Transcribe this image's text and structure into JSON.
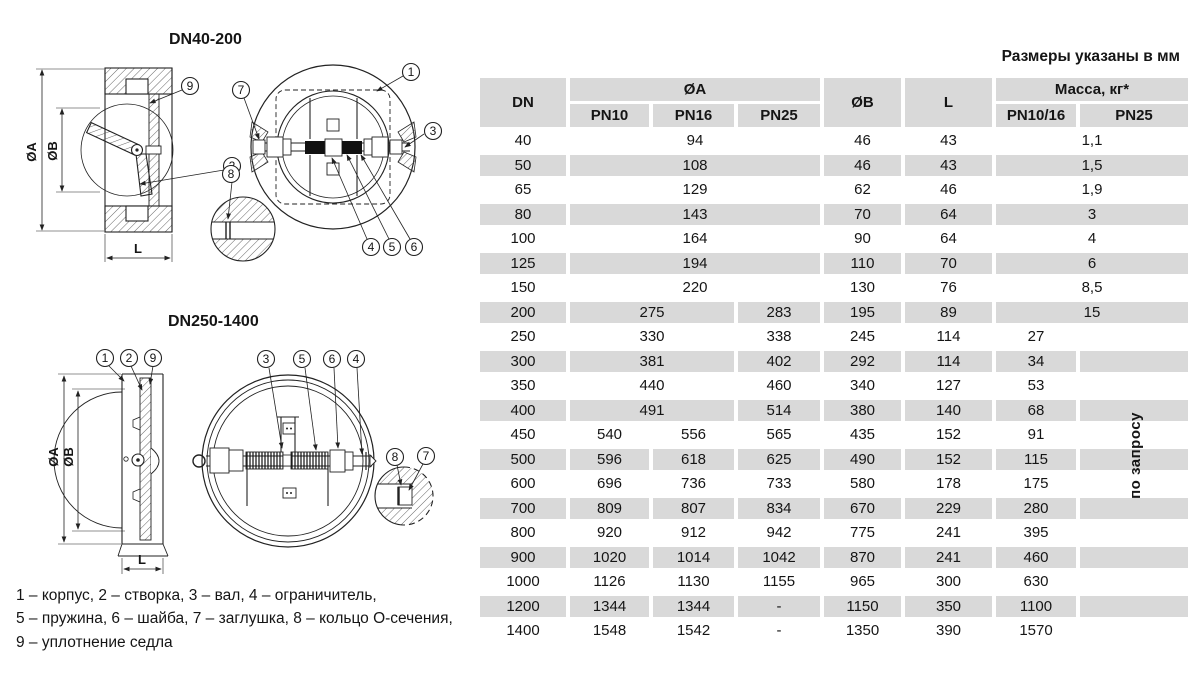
{
  "units_note": "Размеры указаны в мм",
  "drawings": {
    "top": {
      "title": "DN40-200",
      "dims": {
        "a": "ØA",
        "b": "ØB",
        "l": "L"
      },
      "callouts": {
        "c1": "1",
        "c2": "2",
        "c3": "3",
        "c4": "4",
        "c5": "5",
        "c6": "6",
        "c7": "7",
        "c8": "8",
        "c9": "9"
      }
    },
    "bottom": {
      "title": "DN250-1400",
      "dims": {
        "a": "ØA",
        "b": "ØB",
        "l": "L"
      },
      "callouts": {
        "c1": "1",
        "c2": "2",
        "c3": "3",
        "c4": "4",
        "c5": "5",
        "c6": "6",
        "c7": "7",
        "c8": "8",
        "c9": "9"
      }
    }
  },
  "legend": {
    "line1": "1 – корпус, 2 – створка, 3 – вал, 4 – ограничитель,",
    "line2": "5 – пружина, 6 – шайба, 7 – заглушка, 8 – кольцо О-сечения,",
    "line3": "9 – уплотнение седла"
  },
  "table": {
    "header": {
      "dn": "DN",
      "a": "ØA",
      "b": "ØB",
      "l": "L",
      "mass": "Масса, кг*",
      "pn10": "PN10",
      "pn16": "PN16",
      "pn25": "PN25",
      "pn1016": "PN10/16",
      "pn25m": "PN25"
    },
    "on_request": "по запросу",
    "rows": [
      {
        "dn": "40",
        "a": [
          [
            "94",
            3
          ]
        ],
        "b": "46",
        "l": "43",
        "m": [
          [
            "1,1",
            2
          ]
        ]
      },
      {
        "dn": "50",
        "a": [
          [
            "108",
            3
          ]
        ],
        "b": "46",
        "l": "43",
        "m": [
          [
            "1,5",
            2
          ]
        ]
      },
      {
        "dn": "65",
        "a": [
          [
            "129",
            3
          ]
        ],
        "b": "62",
        "l": "46",
        "m": [
          [
            "1,9",
            2
          ]
        ]
      },
      {
        "dn": "80",
        "a": [
          [
            "143",
            3
          ]
        ],
        "b": "70",
        "l": "64",
        "m": [
          [
            "3",
            2
          ]
        ]
      },
      {
        "dn": "100",
        "a": [
          [
            "164",
            3
          ]
        ],
        "b": "90",
        "l": "64",
        "m": [
          [
            "4",
            2
          ]
        ]
      },
      {
        "dn": "125",
        "a": [
          [
            "194",
            3
          ]
        ],
        "b": "110",
        "l": "70",
        "m": [
          [
            "6",
            2
          ]
        ]
      },
      {
        "dn": "150",
        "a": [
          [
            "220",
            3
          ]
        ],
        "b": "130",
        "l": "76",
        "m": [
          [
            "8,5",
            2
          ]
        ]
      },
      {
        "dn": "200",
        "a": [
          [
            "275",
            2
          ],
          [
            "283",
            1
          ]
        ],
        "b": "195",
        "l": "89",
        "m": [
          [
            "15",
            2
          ]
        ]
      },
      {
        "dn": "250",
        "a": [
          [
            "330",
            2
          ],
          [
            "338",
            1
          ]
        ],
        "b": "245",
        "l": "114",
        "m": [
          [
            "27",
            1
          ]
        ]
      },
      {
        "dn": "300",
        "a": [
          [
            "381",
            2
          ],
          [
            "402",
            1
          ]
        ],
        "b": "292",
        "l": "114",
        "m": [
          [
            "34",
            1
          ]
        ]
      },
      {
        "dn": "350",
        "a": [
          [
            "440",
            2
          ],
          [
            "460",
            1
          ]
        ],
        "b": "340",
        "l": "127",
        "m": [
          [
            "53",
            1
          ]
        ]
      },
      {
        "dn": "400",
        "a": [
          [
            "491",
            2
          ],
          [
            "514",
            1
          ]
        ],
        "b": "380",
        "l": "140",
        "m": [
          [
            "68",
            1
          ]
        ]
      },
      {
        "dn": "450",
        "a": [
          [
            "540",
            1
          ],
          [
            "556",
            1
          ],
          [
            "565",
            1
          ]
        ],
        "b": "435",
        "l": "152",
        "m": [
          [
            "91",
            1
          ]
        ]
      },
      {
        "dn": "500",
        "a": [
          [
            "596",
            1
          ],
          [
            "618",
            1
          ],
          [
            "625",
            1
          ]
        ],
        "b": "490",
        "l": "152",
        "m": [
          [
            "115",
            1
          ]
        ]
      },
      {
        "dn": "600",
        "a": [
          [
            "696",
            1
          ],
          [
            "736",
            1
          ],
          [
            "733",
            1
          ]
        ],
        "b": "580",
        "l": "178",
        "m": [
          [
            "175",
            1
          ]
        ]
      },
      {
        "dn": "700",
        "a": [
          [
            "809",
            1
          ],
          [
            "807",
            1
          ],
          [
            "834",
            1
          ]
        ],
        "b": "670",
        "l": "229",
        "m": [
          [
            "280",
            1
          ]
        ]
      },
      {
        "dn": "800",
        "a": [
          [
            "920",
            1
          ],
          [
            "912",
            1
          ],
          [
            "942",
            1
          ]
        ],
        "b": "775",
        "l": "241",
        "m": [
          [
            "395",
            1
          ]
        ]
      },
      {
        "dn": "900",
        "a": [
          [
            "1020",
            1
          ],
          [
            "1014",
            1
          ],
          [
            "1042",
            1
          ]
        ],
        "b": "870",
        "l": "241",
        "m": [
          [
            "460",
            1
          ]
        ]
      },
      {
        "dn": "1000",
        "a": [
          [
            "1126",
            1
          ],
          [
            "1130",
            1
          ],
          [
            "1155",
            1
          ]
        ],
        "b": "965",
        "l": "300",
        "m": [
          [
            "630",
            1
          ]
        ]
      },
      {
        "dn": "1200",
        "a": [
          [
            "1344",
            1
          ],
          [
            "1344",
            1
          ],
          [
            "-",
            1
          ]
        ],
        "b": "1150",
        "l": "350",
        "m": [
          [
            "1100",
            1
          ]
        ]
      },
      {
        "dn": "1400",
        "a": [
          [
            "1548",
            1
          ],
          [
            "1542",
            1
          ],
          [
            "-",
            1
          ]
        ],
        "b": "1350",
        "l": "390",
        "m": [
          [
            "1570",
            1
          ]
        ]
      }
    ]
  },
  "colors": {
    "cell_gray": "#d9d9d9",
    "line": "#222222",
    "text": "#151515"
  }
}
